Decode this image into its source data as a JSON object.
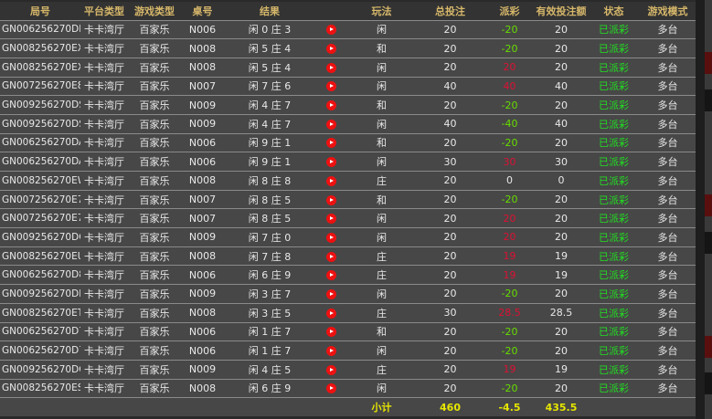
{
  "colors": {
    "header_text": "#d6b76a",
    "payout_positive": "#66dd00",
    "payout_negative": "#dd1133",
    "status": "#22dd22",
    "subtotal": "#e6e600"
  },
  "headers": [
    "局号",
    "平台类型",
    "游戏类型",
    "桌号",
    "结果",
    "",
    "玩法",
    "总投注",
    "派彩",
    "有效投注额",
    "状态",
    "游戏模式"
  ],
  "rows": [
    {
      "id": "GN006256270DB",
      "platform": "卡卡湾厅",
      "game": "百家乐",
      "table": "N006",
      "result": "闲 0 庄 3",
      "bet_type": "闲",
      "total_bet": "20",
      "payout": "-20",
      "valid_bet": "20",
      "status": "已派彩",
      "mode": "多台"
    },
    {
      "id": "GN008256270EX",
      "platform": "卡卡湾厅",
      "game": "百家乐",
      "table": "N008",
      "result": "闲 5 庄 4",
      "bet_type": "和",
      "total_bet": "20",
      "payout": "-20",
      "valid_bet": "20",
      "status": "已派彩",
      "mode": "多台"
    },
    {
      "id": "GN008256270EX",
      "platform": "卡卡湾厅",
      "game": "百家乐",
      "table": "N008",
      "result": "闲 5 庄 4",
      "bet_type": "闲",
      "total_bet": "20",
      "payout": "20",
      "valid_bet": "20",
      "status": "已派彩",
      "mode": "多台"
    },
    {
      "id": "GN007256270E8",
      "platform": "卡卡湾厅",
      "game": "百家乐",
      "table": "N007",
      "result": "闲 7 庄 6",
      "bet_type": "闲",
      "total_bet": "40",
      "payout": "40",
      "valid_bet": "40",
      "status": "已派彩",
      "mode": "多台"
    },
    {
      "id": "GN009256270DS",
      "platform": "卡卡湾厅",
      "game": "百家乐",
      "table": "N009",
      "result": "闲 4 庄 7",
      "bet_type": "和",
      "total_bet": "20",
      "payout": "-20",
      "valid_bet": "20",
      "status": "已派彩",
      "mode": "多台"
    },
    {
      "id": "GN009256270DS",
      "platform": "卡卡湾厅",
      "game": "百家乐",
      "table": "N009",
      "result": "闲 4 庄 7",
      "bet_type": "闲",
      "total_bet": "40",
      "payout": "-40",
      "valid_bet": "40",
      "status": "已派彩",
      "mode": "多台"
    },
    {
      "id": "GN006256270DA",
      "platform": "卡卡湾厅",
      "game": "百家乐",
      "table": "N006",
      "result": "闲 9 庄 1",
      "bet_type": "和",
      "total_bet": "20",
      "payout": "-20",
      "valid_bet": "20",
      "status": "已派彩",
      "mode": "多台"
    },
    {
      "id": "GN006256270DA",
      "platform": "卡卡湾厅",
      "game": "百家乐",
      "table": "N006",
      "result": "闲 9 庄 1",
      "bet_type": "闲",
      "total_bet": "30",
      "payout": "30",
      "valid_bet": "30",
      "status": "已派彩",
      "mode": "多台"
    },
    {
      "id": "GN008256270EW",
      "platform": "卡卡湾厅",
      "game": "百家乐",
      "table": "N008",
      "result": "闲 8 庄 8",
      "bet_type": "庄",
      "total_bet": "20",
      "payout": "0",
      "valid_bet": "0",
      "status": "已派彩",
      "mode": "多台"
    },
    {
      "id": "GN007256270E7",
      "platform": "卡卡湾厅",
      "game": "百家乐",
      "table": "N007",
      "result": "闲 8 庄 5",
      "bet_type": "和",
      "total_bet": "20",
      "payout": "-20",
      "valid_bet": "20",
      "status": "已派彩",
      "mode": "多台"
    },
    {
      "id": "GN007256270E7",
      "platform": "卡卡湾厅",
      "game": "百家乐",
      "table": "N007",
      "result": "闲 8 庄 5",
      "bet_type": "闲",
      "total_bet": "20",
      "payout": "20",
      "valid_bet": "20",
      "status": "已派彩",
      "mode": "多台"
    },
    {
      "id": "GN009256270DQ",
      "platform": "卡卡湾厅",
      "game": "百家乐",
      "table": "N009",
      "result": "闲 7 庄 0",
      "bet_type": "闲",
      "total_bet": "20",
      "payout": "20",
      "valid_bet": "20",
      "status": "已派彩",
      "mode": "多台"
    },
    {
      "id": "GN008256270EU",
      "platform": "卡卡湾厅",
      "game": "百家乐",
      "table": "N008",
      "result": "闲 7 庄 8",
      "bet_type": "庄",
      "total_bet": "20",
      "payout": "19",
      "valid_bet": "19",
      "status": "已派彩",
      "mode": "多台"
    },
    {
      "id": "GN006256270D8",
      "platform": "卡卡湾厅",
      "game": "百家乐",
      "table": "N006",
      "result": "闲 6 庄 9",
      "bet_type": "庄",
      "total_bet": "20",
      "payout": "19",
      "valid_bet": "19",
      "status": "已派彩",
      "mode": "多台"
    },
    {
      "id": "GN009256270DP",
      "platform": "卡卡湾厅",
      "game": "百家乐",
      "table": "N009",
      "result": "闲 3 庄 7",
      "bet_type": "闲",
      "total_bet": "20",
      "payout": "-20",
      "valid_bet": "20",
      "status": "已派彩",
      "mode": "多台"
    },
    {
      "id": "GN008256270ET",
      "platform": "卡卡湾厅",
      "game": "百家乐",
      "table": "N008",
      "result": "闲 3 庄 5",
      "bet_type": "庄",
      "total_bet": "30",
      "payout": "28.5",
      "valid_bet": "28.5",
      "status": "已派彩",
      "mode": "多台"
    },
    {
      "id": "GN006256270D7",
      "platform": "卡卡湾厅",
      "game": "百家乐",
      "table": "N006",
      "result": "闲 1 庄 7",
      "bet_type": "和",
      "total_bet": "20",
      "payout": "-20",
      "valid_bet": "20",
      "status": "已派彩",
      "mode": "多台"
    },
    {
      "id": "GN006256270D7",
      "platform": "卡卡湾厅",
      "game": "百家乐",
      "table": "N006",
      "result": "闲 1 庄 7",
      "bet_type": "闲",
      "total_bet": "20",
      "payout": "-20",
      "valid_bet": "20",
      "status": "已派彩",
      "mode": "多台"
    },
    {
      "id": "GN009256270DO",
      "platform": "卡卡湾厅",
      "game": "百家乐",
      "table": "N009",
      "result": "闲 4 庄 5",
      "bet_type": "庄",
      "total_bet": "20",
      "payout": "19",
      "valid_bet": "19",
      "status": "已派彩",
      "mode": "多台"
    },
    {
      "id": "GN008256270ES",
      "platform": "卡卡湾厅",
      "game": "百家乐",
      "table": "N008",
      "result": "闲 6 庄 9",
      "bet_type": "闲",
      "total_bet": "20",
      "payout": "-20",
      "valid_bet": "20",
      "status": "已派彩",
      "mode": "多台"
    }
  ],
  "subtotal": {
    "label": "小计",
    "total_bet": "460",
    "payout": "-4.5",
    "valid_bet": "435.5"
  },
  "icons": {
    "replay": "play-circle-icon"
  }
}
